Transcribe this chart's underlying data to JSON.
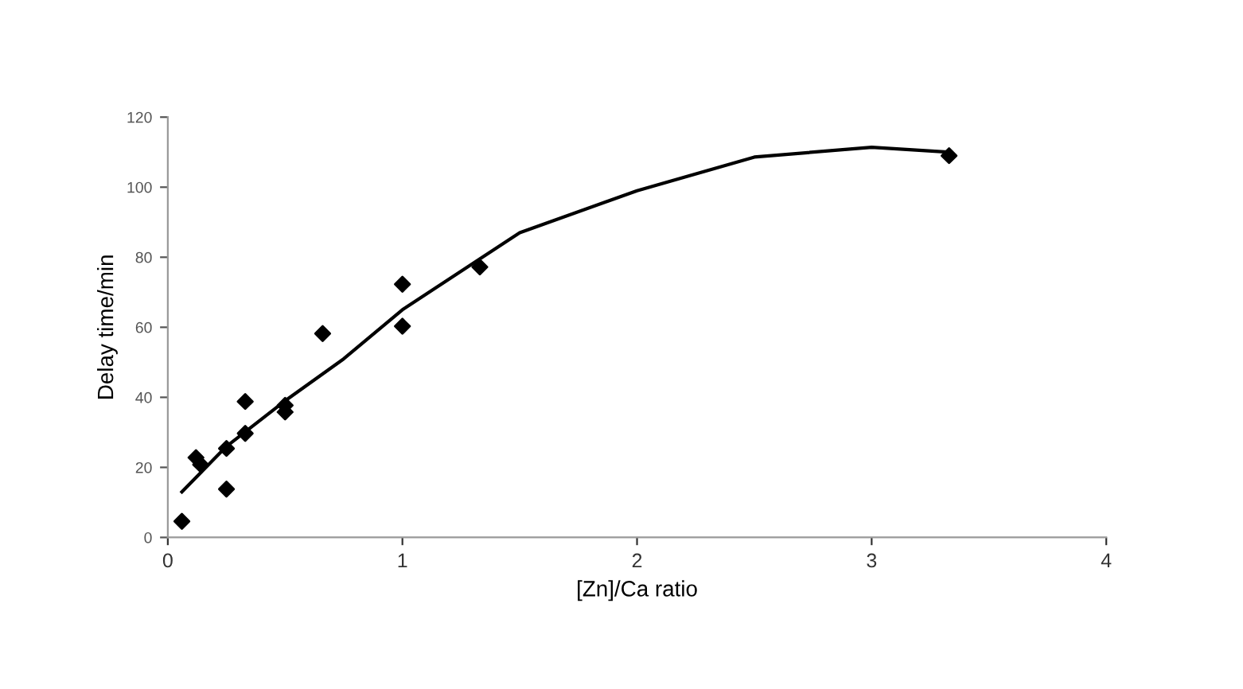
{
  "chart_data": {
    "type": "scatter",
    "xlabel": "[Zn]/Ca ratio",
    "ylabel": "Delay time/min",
    "xlim": [
      0,
      4
    ],
    "ylim": [
      0,
      120
    ],
    "xticks": [
      0,
      1,
      2,
      3,
      4
    ],
    "yticks": [
      0,
      20,
      40,
      60,
      80,
      100,
      120
    ],
    "grid": false,
    "marker": "diamond",
    "series": [
      {
        "color": "#000000",
        "x": [
          0.06,
          0.11,
          0.12,
          0.14,
          0.25,
          0.25,
          0.33,
          0.33,
          0.5,
          0.5,
          0.66,
          1.0,
          1.0,
          1.33,
          3.33
        ],
        "values": [
          4.6,
          null,
          22.8,
          20.8,
          25.4,
          13.8,
          38.8,
          29.7,
          37.7,
          35.8,
          58.2,
          72.3,
          60.3,
          77.2,
          109
        ]
      },
      {
        "type": "line",
        "color": "#000000",
        "marker": "none",
        "x": [
          0.06,
          0.25,
          0.5,
          0.75,
          1,
          1.5,
          2,
          2.5,
          3,
          3.33
        ],
        "values": [
          13,
          26,
          39,
          51,
          65,
          87,
          99,
          108.6,
          111.4,
          110
        ]
      }
    ]
  }
}
